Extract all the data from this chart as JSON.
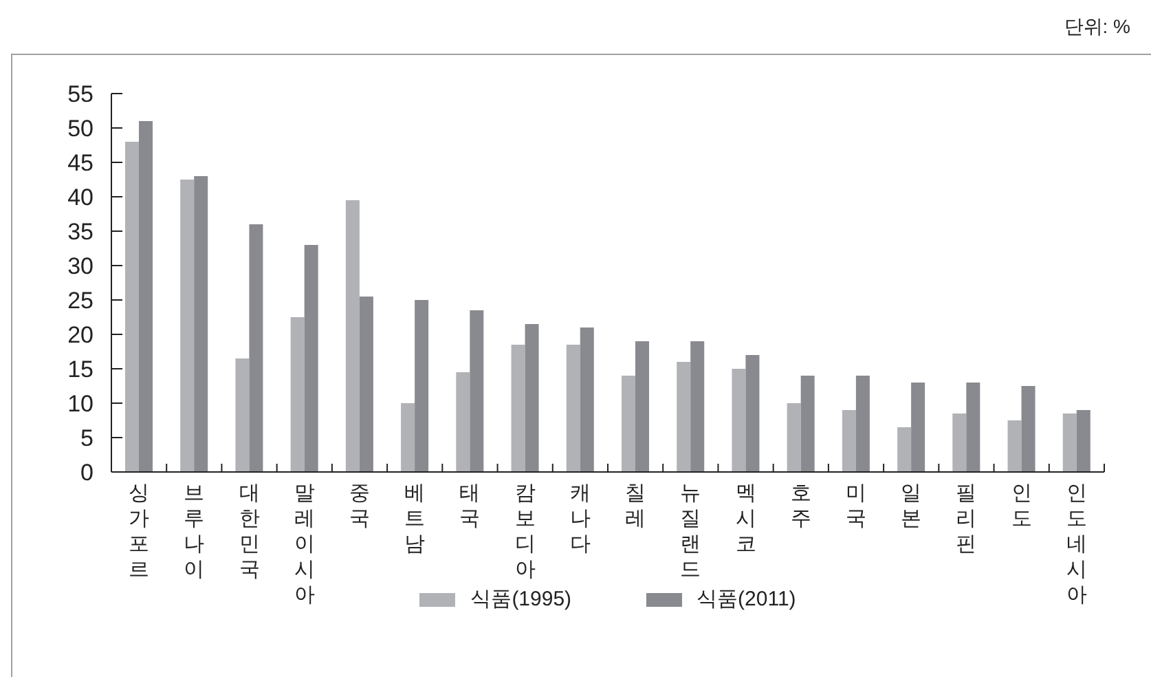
{
  "chart_data": {
    "type": "bar",
    "annotations": [
      "단위: %"
    ],
    "categories": [
      "싱가포르",
      "브루나이",
      "대한민국",
      "말레이시아",
      "중국",
      "베트남",
      "태국",
      "캄보디아",
      "캐나다",
      "칠레",
      "뉴질랜드",
      "멕시코",
      "호주",
      "미국",
      "일본",
      "필리핀",
      "인도",
      "인도네시아"
    ],
    "series": [
      {
        "name": "식품(1995)",
        "color": "#b1b2b6",
        "values": [
          48,
          42.5,
          16.5,
          22.5,
          39.5,
          10,
          14.5,
          18.5,
          18.5,
          14,
          16,
          15,
          10,
          9,
          6.5,
          8.5,
          7.5,
          8.5
        ]
      },
      {
        "name": "식품(2011)",
        "color": "#898a8f",
        "values": [
          51,
          43,
          36,
          33,
          25.5,
          25,
          23.5,
          21.5,
          21,
          19,
          19,
          17,
          14,
          14,
          13,
          13,
          12.5,
          9
        ]
      }
    ],
    "ylim": [
      0,
      55
    ],
    "yticks": [
      0,
      5,
      10,
      15,
      20,
      25,
      30,
      35,
      40,
      45,
      50,
      55
    ],
    "legend": "bottom"
  }
}
